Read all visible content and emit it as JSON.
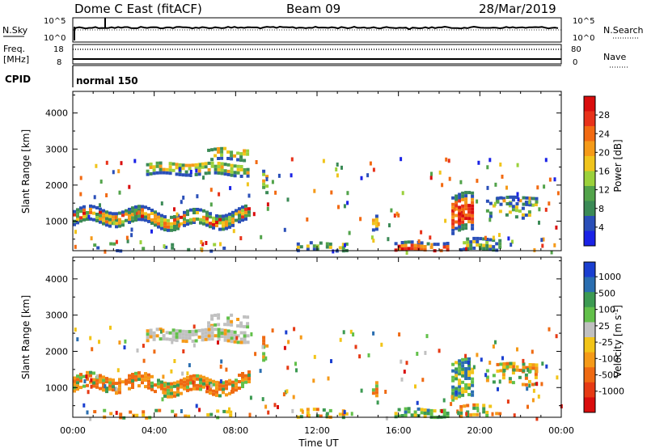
{
  "header": {
    "station": "Dome C East (fitACF)",
    "beam": "Beam 09",
    "date": "28/Mar/2019"
  },
  "summary_panels": {
    "nsky_label": "N.Sky",
    "nsky_ticks": [
      "10^5",
      "10^0"
    ],
    "nsearch_label": "N.Search",
    "nsearch_ticks": [
      "10^5",
      "10^0"
    ],
    "freq_label": "Freq.",
    "freq_unit": "[MHz]",
    "freq_ticks": [
      "18",
      "8"
    ],
    "nave_label": "Nave",
    "nave_ticks": [
      "80",
      "0"
    ],
    "cpid_label": "CPID",
    "cpid_value": "normal 150"
  },
  "chart_data": [
    {
      "type": "heatmap",
      "parameter": "Power",
      "xlabel": "",
      "ylabel": "Slant Range [km]",
      "xlim_hours": [
        0,
        24
      ],
      "ylim_km": [
        180,
        4600
      ],
      "y_ticks": [
        "1000",
        "2000",
        "3000",
        "4000"
      ],
      "colorbar_label": "Power [dB]",
      "colorbar_ticks": [
        "4",
        "8",
        "12",
        "16",
        "20",
        "24",
        "28"
      ],
      "colorbar_colors": [
        "#1a22e6",
        "#2a4fb8",
        "#3b8a56",
        "#52a34a",
        "#9bd13b",
        "#f0c41c",
        "#f59a18",
        "#f26a12",
        "#e8321a",
        "#d90d0d"
      ]
    },
    {
      "type": "heatmap",
      "parameter": "Velocity",
      "xlabel": "Time UT",
      "ylabel": "Slant Range [km]",
      "xlim_hours": [
        0,
        24
      ],
      "ylim_km": [
        180,
        4600
      ],
      "y_ticks": [
        "1000",
        "2000",
        "3000",
        "4000"
      ],
      "x_ticks": [
        "00:00",
        "04:00",
        "08:00",
        "12:00",
        "16:00",
        "20:00",
        "00:00"
      ],
      "colorbar_label": "Velocity [m s^-1]",
      "colorbar_ticks": [
        "1000",
        "500",
        "100",
        "25",
        "-25",
        "-100",
        "-500",
        "-1000"
      ],
      "colorbar_colors": [
        "#1a3fd0",
        "#2a6eb0",
        "#3c9a52",
        "#62c04a",
        "#c0c0c0",
        "#f2c418",
        "#f59a18",
        "#ef6a12",
        "#e63a14",
        "#d90d0d"
      ]
    }
  ]
}
